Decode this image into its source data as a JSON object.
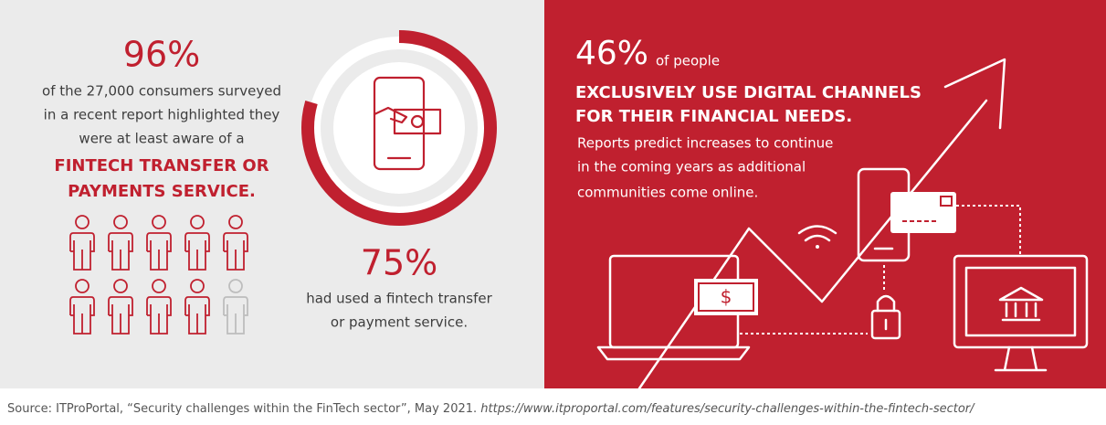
{
  "left": {
    "stat": "96%",
    "lines": [
      "of the 27,000 consumers surveyed",
      "in a recent report highlighted they",
      "were at least aware of a"
    ],
    "highlight": [
      "FINTECH TRANSFER OR",
      "PAYMENTS SERVICE."
    ]
  },
  "middle": {
    "stat": "75%",
    "lines": [
      "had used a fintech transfer",
      "or payment service."
    ]
  },
  "right": {
    "stat": "46%",
    "stat_suffix": "of people",
    "headline": [
      "EXCLUSIVELY USE DIGITAL CHANNELS",
      "FOR THEIR FINANCIAL NEEDS."
    ],
    "lines": [
      "Reports predict increases to continue",
      "in the coming years as additional",
      "communities come online."
    ]
  },
  "source": {
    "text": "Source: ITProPortal, “Security challenges within the FinTech sector”, May 2021. ",
    "url": "https://www.itproportal.com/features/security-challenges-within-the-fintech-sector/"
  }
}
